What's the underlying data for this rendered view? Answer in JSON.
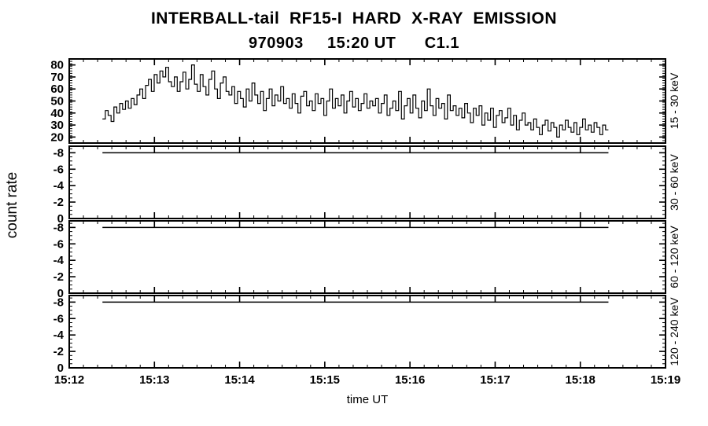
{
  "header": {
    "title": "INTERBALL-tail  RF15-I  HARD  X-RAY  EMISSION",
    "subtitle": "970903     15:20 UT      C1.1"
  },
  "axes": {
    "ylabel": "count rate",
    "xlabel": "time UT"
  },
  "colors": {
    "ink": "#000000",
    "background": "#ffffff"
  },
  "chart_data": {
    "type": "line",
    "title": "INTERBALL-tail RF15-I HARD X-RAY EMISSION",
    "subtitle": "970903 15:20 UT C1.1",
    "xlabel": "time UT",
    "ylabel": "count rate",
    "x_axis": {
      "range_minutes": [
        0,
        7
      ],
      "major_ticks": [
        0,
        1,
        2,
        3,
        4,
        5,
        6,
        7
      ],
      "tick_labels": [
        "15:12",
        "15:13",
        "15:14",
        "15:15",
        "15:16",
        "15:17",
        "15:18",
        "15:19"
      ],
      "minor_step_minutes": 0.1666667
    },
    "series_start_min": 0.39,
    "series_step_min": 0.03375,
    "panels": [
      {
        "right_label": "15 - 30 keV",
        "y_bottom": 15,
        "y_top": 85,
        "yticks": [
          20,
          30,
          40,
          50,
          60,
          70,
          80
        ],
        "y_minor_step": 2,
        "values": [
          35,
          42,
          38,
          33,
          45,
          40,
          48,
          43,
          50,
          44,
          52,
          47,
          55,
          60,
          52,
          63,
          68,
          58,
          72,
          65,
          75,
          70,
          78,
          66,
          62,
          70,
          58,
          66,
          74,
          60,
          68,
          80,
          64,
          58,
          72,
          62,
          55,
          68,
          75,
          60,
          52,
          65,
          70,
          58,
          55,
          62,
          48,
          58,
          52,
          45,
          60,
          50,
          65,
          55,
          48,
          58,
          42,
          52,
          60,
          46,
          55,
          50,
          62,
          48,
          52,
          44,
          56,
          48,
          40,
          54,
          58,
          46,
          50,
          42,
          56,
          48,
          52,
          38,
          50,
          60,
          44,
          52,
          46,
          55,
          40,
          50,
          58,
          45,
          52,
          42,
          48,
          56,
          44,
          50,
          46,
          52,
          40,
          48,
          55,
          38,
          44,
          50,
          42,
          58,
          35,
          46,
          52,
          40,
          55,
          44,
          36,
          50,
          42,
          60,
          46,
          38,
          52,
          44,
          48,
          35,
          55,
          42,
          46,
          38,
          44,
          36,
          48,
          40,
          32,
          44,
          38,
          46,
          30,
          40,
          34,
          44,
          28,
          38,
          42,
          32,
          36,
          44,
          30,
          38,
          26,
          34,
          40,
          30,
          32,
          26,
          35,
          28,
          22,
          30,
          34,
          25,
          32,
          28,
          20,
          30,
          26,
          34,
          28,
          24,
          32,
          22,
          28,
          35,
          26,
          30,
          24,
          32,
          28,
          22,
          30,
          26
        ]
      },
      {
        "right_label": "30 - 60 keV",
        "y_bottom": 0,
        "y_top": -8.8,
        "yticks": [
          -8,
          -6,
          -4,
          -2,
          0
        ],
        "y_minor_step": -0.5,
        "flat_line": {
          "value": -8,
          "t_start": 0.39,
          "t_end": 6.33
        }
      },
      {
        "right_label": "60 - 120 keV",
        "y_bottom": 0,
        "y_top": -8.8,
        "yticks": [
          -8,
          -6,
          -4,
          -2,
          0
        ],
        "y_minor_step": -0.5,
        "flat_line": {
          "value": -8,
          "t_start": 0.39,
          "t_end": 6.33
        }
      },
      {
        "right_label": "120 - 240 keV",
        "y_bottom": 0,
        "y_top": -8.8,
        "yticks": [
          -8,
          -6,
          -4,
          -2,
          0
        ],
        "y_minor_step": -0.5,
        "flat_line": {
          "value": -8,
          "t_start": 0.39,
          "t_end": 6.33
        }
      }
    ]
  }
}
